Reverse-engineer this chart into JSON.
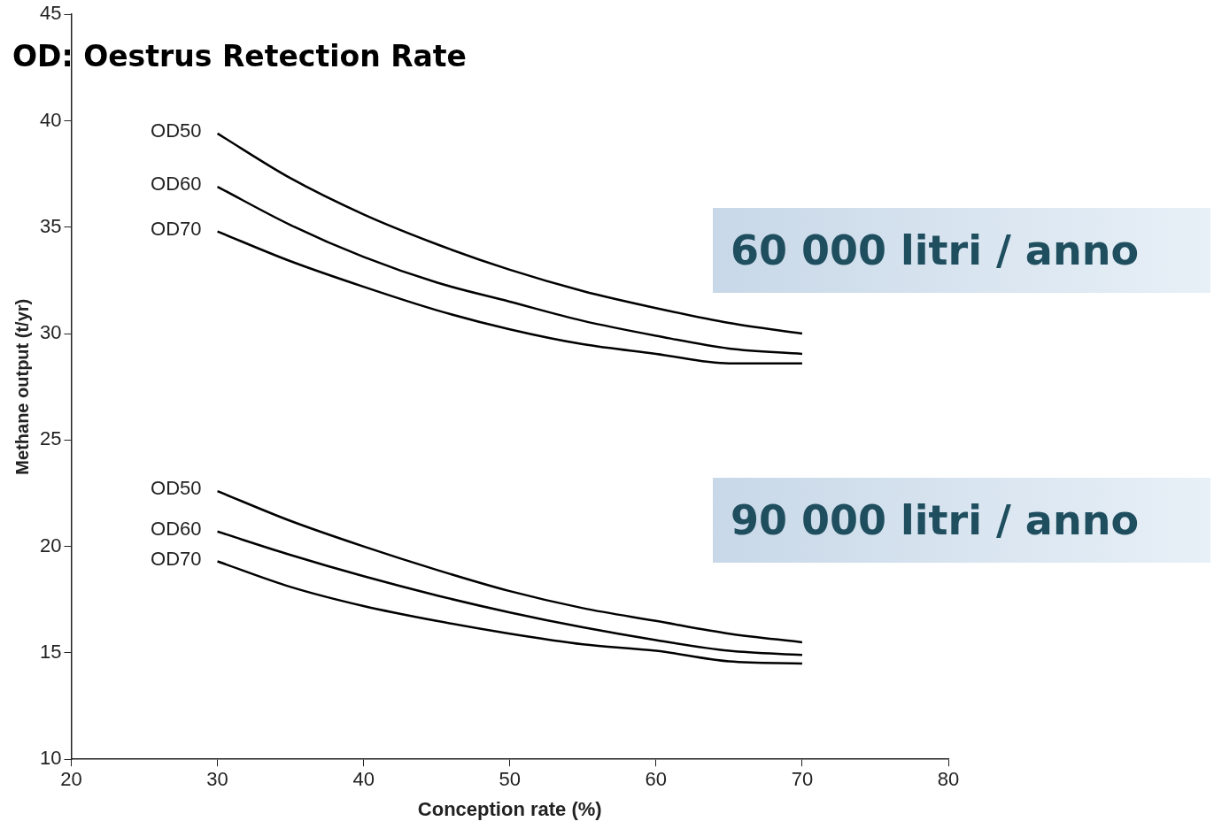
{
  "chart_data": {
    "type": "line",
    "title": "OD: Oestrus Retection Rate",
    "xlabel": "Conception rate (%)",
    "ylabel": "Methane output (t/yr)",
    "x": [
      30,
      35,
      40,
      45,
      50,
      55,
      60,
      65,
      70
    ],
    "series": [
      {
        "name": "OD50",
        "color": "#000000",
        "values": [
          39.4,
          37.3,
          35.6,
          34.2,
          33.0,
          32.0,
          31.2,
          30.5,
          30.0
        ]
      },
      {
        "name": "OD60",
        "color": "#000000",
        "values": [
          36.9,
          35.1,
          33.6,
          32.4,
          31.5,
          30.6,
          29.9,
          29.3,
          29.05
        ]
      },
      {
        "name": "OD70",
        "color": "#000000",
        "values": [
          34.8,
          33.4,
          32.2,
          31.1,
          30.2,
          29.5,
          29.05,
          28.6,
          28.6
        ]
      },
      {
        "name": "OD50",
        "color": "#000000",
        "values": [
          22.6,
          21.2,
          20.0,
          18.9,
          17.9,
          17.1,
          16.5,
          15.9,
          15.5
        ]
      },
      {
        "name": "OD60",
        "color": "#000000",
        "values": [
          20.7,
          19.6,
          18.6,
          17.7,
          16.9,
          16.2,
          15.6,
          15.1,
          14.9
        ]
      },
      {
        "name": "OD70",
        "color": "#000000",
        "values": [
          19.3,
          18.1,
          17.2,
          16.5,
          15.9,
          15.4,
          15.1,
          14.6,
          14.5
        ]
      }
    ],
    "xlim": [
      20,
      80
    ],
    "xticks": [
      20,
      30,
      40,
      50,
      60,
      70,
      80
    ],
    "ylim": [
      10,
      45
    ],
    "yticks": [
      10,
      15,
      20,
      25,
      30,
      35,
      40,
      45
    ],
    "grid": false,
    "legend": false,
    "marker": "none",
    "line_style": "solid",
    "annotations": [
      "60 000 litri / anno",
      "90 000 litri / anno"
    ]
  }
}
